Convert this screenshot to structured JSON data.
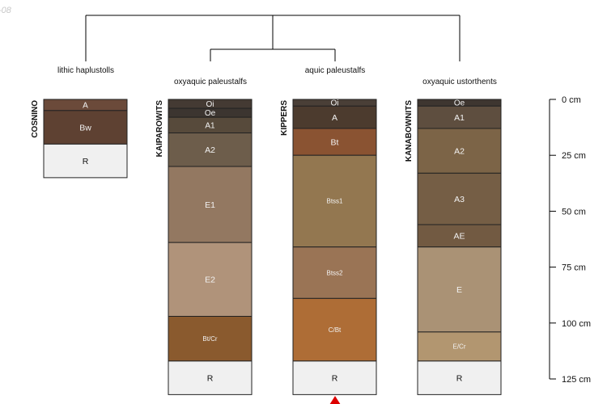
{
  "corner_label": "-08",
  "taxa": [
    {
      "id": "lithic",
      "label": "lithic haplustolls"
    },
    {
      "id": "oxy_pale",
      "label": "oxyaquic paleustalfs"
    },
    {
      "id": "aquic_pale",
      "label": "aquic paleustalfs"
    },
    {
      "id": "oxy_ust",
      "label": "oxyaquic ustorthents"
    }
  ],
  "depth_axis": {
    "unit": "cm",
    "max": 125,
    "ticks": [
      {
        "value": 0,
        "label": "0 cm"
      },
      {
        "value": 25,
        "label": "25 cm"
      },
      {
        "value": 50,
        "label": "50 cm"
      },
      {
        "value": 75,
        "label": "75 cm"
      },
      {
        "value": 100,
        "label": "100 cm"
      },
      {
        "value": 125,
        "label": "125 cm"
      }
    ]
  },
  "profiles": [
    {
      "name": "COSNINO",
      "taxon": "lithic",
      "horizons": [
        {
          "label": "A",
          "top": 0,
          "bottom": 5,
          "color": "#6b4a3a"
        },
        {
          "label": "Bw",
          "top": 5,
          "bottom": 20,
          "color": "#5e4132"
        },
        {
          "label": "R",
          "top": 20,
          "bottom": 35,
          "color": "#f0f0f0"
        }
      ]
    },
    {
      "name": "KAIPAROWITS",
      "taxon": "oxy_pale",
      "horizons": [
        {
          "label": "Oi",
          "top": 0,
          "bottom": 4,
          "color": "#443a33"
        },
        {
          "label": "Oe",
          "top": 4,
          "bottom": 8,
          "color": "#3c3530"
        },
        {
          "label": "A1",
          "top": 8,
          "bottom": 15,
          "color": "#574a3b"
        },
        {
          "label": "A2",
          "top": 15,
          "bottom": 30,
          "color": "#6d5d4b"
        },
        {
          "label": "E1",
          "top": 30,
          "bottom": 64,
          "color": "#937861"
        },
        {
          "label": "E2",
          "top": 64,
          "bottom": 97,
          "color": "#b0937a"
        },
        {
          "label": "Bt/Cr",
          "top": 97,
          "bottom": 117,
          "color": "#8a5a2e"
        },
        {
          "label": "R",
          "top": 117,
          "bottom": 132,
          "color": "#f0f0f0"
        }
      ]
    },
    {
      "name": "KIPPERS",
      "taxon": "aquic_pale",
      "horizons": [
        {
          "label": "Oi",
          "top": 0,
          "bottom": 3,
          "color": "#4a3f37"
        },
        {
          "label": "A",
          "top": 3,
          "bottom": 13,
          "color": "#4c3b2e"
        },
        {
          "label": "Bt",
          "top": 13,
          "bottom": 25,
          "color": "#8a5332"
        },
        {
          "label": "Btss1",
          "top": 25,
          "bottom": 66,
          "color": "#937750"
        },
        {
          "label": "Btss2",
          "top": 66,
          "bottom": 89,
          "color": "#9a7455"
        },
        {
          "label": "C/Bt",
          "top": 89,
          "bottom": 117,
          "color": "#ae6d36"
        },
        {
          "label": "R",
          "top": 117,
          "bottom": 132,
          "color": "#f0f0f0"
        }
      ]
    },
    {
      "name": "KANABOWNITS",
      "taxon": "oxy_ust",
      "horizons": [
        {
          "label": "Oe",
          "top": 0,
          "bottom": 3,
          "color": "#3e3630"
        },
        {
          "label": "A1",
          "top": 3,
          "bottom": 13,
          "color": "#5e4e3f"
        },
        {
          "label": "A2",
          "top": 13,
          "bottom": 33,
          "color": "#7c6447"
        },
        {
          "label": "A3",
          "top": 33,
          "bottom": 56,
          "color": "#755e45"
        },
        {
          "label": "AE",
          "top": 56,
          "bottom": 66,
          "color": "#725a42"
        },
        {
          "label": "E",
          "top": 66,
          "bottom": 104,
          "color": "#aa9275"
        },
        {
          "label": "E/Cr",
          "top": 104,
          "bottom": 117,
          "color": "#b29670"
        },
        {
          "label": "R",
          "top": 117,
          "bottom": 132,
          "color": "#f0f0f0"
        }
      ]
    }
  ],
  "colors": {
    "line": "#000000",
    "border": "#222222",
    "label_light": "#f2f2f2",
    "label_dark": "#111111",
    "marker": "#dd0000",
    "corner": "#c8c8c8"
  }
}
